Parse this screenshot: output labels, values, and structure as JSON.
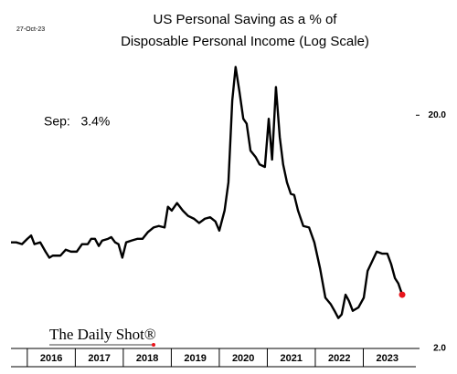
{
  "chart_data": {
    "type": "line",
    "date": "27-Oct-23",
    "title": [
      "US Personal Saving as a % of",
      "Disposable Personal Income (Log Scale)"
    ],
    "annotation": "Sep:   3.4%",
    "source": "The Daily Shot®",
    "log_scale": true,
    "grid": false,
    "color": "#000000",
    "highlight_color": "#e8141b",
    "xlim": [
      2015.66,
      2024.0
    ],
    "xticks": [
      {
        "value": 2016.5,
        "label": "2016"
      },
      {
        "value": 2017.5,
        "label": "2017"
      },
      {
        "value": 2018.5,
        "label": "2018"
      },
      {
        "value": 2019.5,
        "label": "2019"
      },
      {
        "value": 2020.5,
        "label": "2020"
      },
      {
        "value": 2021.5,
        "label": "2021"
      },
      {
        "value": 2022.5,
        "label": "2022"
      },
      {
        "value": 2023.5,
        "label": "2023"
      }
    ],
    "ylim": [
      2,
      36
    ],
    "yticks": [
      {
        "value": 2,
        "label": "2.0"
      },
      {
        "value": 20,
        "label": "20.0"
      }
    ],
    "x": [
      2015.66,
      2015.77,
      2015.89,
      2016.0,
      2016.08,
      2016.15,
      2016.27,
      2016.38,
      2016.46,
      2016.53,
      2016.69,
      2016.8,
      2016.91,
      2017.03,
      2017.14,
      2017.26,
      2017.33,
      2017.41,
      2017.49,
      2017.56,
      2017.68,
      2017.75,
      2017.83,
      2017.9,
      2017.98,
      2018.06,
      2018.17,
      2018.29,
      2018.4,
      2018.51,
      2018.63,
      2018.74,
      2018.86,
      2018.93,
      2019.01,
      2019.12,
      2019.24,
      2019.35,
      2019.47,
      2019.58,
      2019.7,
      2019.81,
      2019.92,
      2020.0,
      2020.11,
      2020.19,
      2020.27,
      2020.34,
      2020.42,
      2020.5,
      2020.57,
      2020.65,
      2020.76,
      2020.84,
      2020.95,
      2021.03,
      2021.1,
      2021.18,
      2021.26,
      2021.33,
      2021.41,
      2021.49,
      2021.56,
      2021.64,
      2021.75,
      2021.87,
      2021.98,
      2022.1,
      2022.21,
      2022.32,
      2022.4,
      2022.48,
      2022.55,
      2022.63,
      2022.7,
      2022.78,
      2022.9,
      2023.01,
      2023.09,
      2023.2,
      2023.28,
      2023.39,
      2023.5,
      2023.58,
      2023.66,
      2023.73,
      2023.81
    ],
    "values": [
      5.7,
      5.7,
      5.6,
      5.9,
      6.1,
      5.6,
      5.7,
      5.2,
      4.9,
      5.0,
      5.0,
      5.3,
      5.2,
      5.2,
      5.6,
      5.6,
      5.9,
      5.9,
      5.5,
      5.8,
      5.9,
      6.0,
      5.7,
      5.6,
      4.9,
      5.7,
      5.8,
      5.9,
      5.9,
      6.3,
      6.6,
      6.7,
      6.6,
      8.1,
      7.8,
      8.4,
      7.8,
      7.4,
      7.2,
      6.9,
      7.2,
      7.3,
      7.0,
      6.4,
      7.8,
      10.3,
      23.1,
      32.2,
      25.2,
      19.3,
      18.4,
      14.1,
      13.2,
      12.3,
      12.0,
      19.3,
      12.9,
      26.4,
      16.1,
      12.3,
      10.3,
      9.2,
      9.1,
      7.8,
      6.7,
      6.6,
      5.7,
      4.4,
      3.3,
      3.1,
      2.9,
      2.7,
      2.8,
      3.4,
      3.2,
      2.9,
      3.0,
      3.3,
      4.3,
      4.8,
      5.2,
      5.1,
      5.1,
      4.6,
      4.0,
      3.8,
      3.4
    ]
  }
}
